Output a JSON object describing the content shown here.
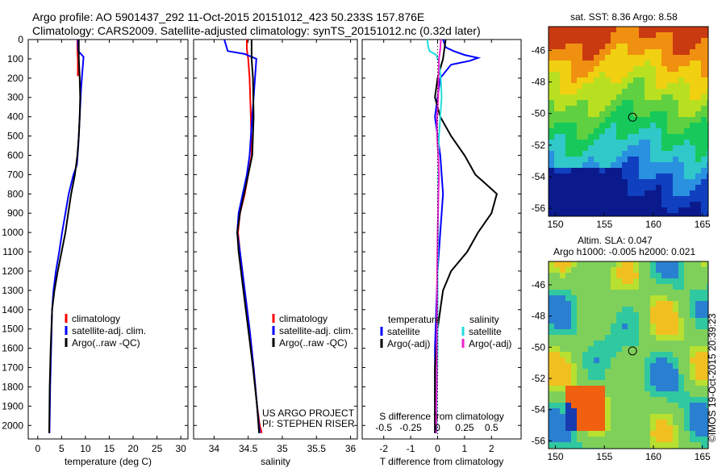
{
  "header": {
    "line1": "Argo profile: AO 5901437_292 11-Oct-2015 20151012_423 50.233S 157.876E",
    "line2": "Climatology: CARS2009. Satellite-adjusted climatology: synTS_20151012.nc (0.32d later)"
  },
  "maps": {
    "sst_title": "sat. SST: 8.36 Argo: 8.58",
    "sla_title1": "Altim. SLA: 0.047",
    "sla_title2": "Argo h1000: -0.005 h2000: 0.021",
    "lon_ticks": [
      "150",
      "155",
      "160",
      "165"
    ],
    "lat_ticks": [
      "-46",
      "-48",
      "-50",
      "-52",
      "-54",
      "-56"
    ],
    "credit": "©IMOS 19-Oct-2015 20:39:23",
    "colors": {
      "sst_deep": "#0a1a8c",
      "sst_mid": "#16c95a",
      "sst_warm": "#c93a10",
      "sla_base": "#7fd05a"
    }
  },
  "annotation": {
    "project": "US ARGO PROJECT",
    "pi": "PI: STEPHEN RISER"
  },
  "colors": {
    "climatology": "#ff0000",
    "satellite": "#0000ff",
    "argo": "#000000",
    "sal_satellite": "#22dddd",
    "sal_argo": "#ee22cc"
  },
  "chart_data": [
    {
      "type": "line",
      "xlabel": "temperature (deg C)",
      "xticks": [
        "0",
        "5",
        "10",
        "15",
        "20",
        "25",
        "30"
      ],
      "xlim": [
        -2,
        31.5
      ],
      "ylim": [
        2070,
        0
      ],
      "yticks": [
        "0",
        "100",
        "200",
        "300",
        "400",
        "500",
        "600",
        "700",
        "800",
        "900",
        "1000",
        "1100",
        "1200",
        "1300",
        "1400",
        "1500",
        "1600",
        "1700",
        "1800",
        "1900",
        "2000"
      ],
      "legend": [
        "climatology",
        "satellite-adj. clim.",
        "Argo(..raw -QC)"
      ],
      "series": [
        {
          "name": "climatology",
          "color_key": "climatology",
          "x": [
            8.3,
            8.3,
            8.4,
            8.4
          ],
          "y": [
            0,
            50,
            100,
            190
          ]
        },
        {
          "name": "satellite-adj. clim.",
          "color_key": "satellite",
          "x": [
            8.4,
            8.5,
            9.6,
            9.4,
            9.1,
            8.9,
            8.7,
            8.5,
            8.2,
            7.5,
            6.5,
            5.8,
            5.1,
            4.5,
            3.8,
            3.3,
            3.0,
            2.8,
            2.6,
            2.55,
            2.45
          ],
          "y": [
            0,
            60,
            90,
            150,
            250,
            350,
            450,
            550,
            650,
            700,
            800,
            900,
            1000,
            1100,
            1200,
            1300,
            1400,
            1600,
            1800,
            1900,
            2040
          ]
        },
        {
          "name": "Argo(..raw -QC)",
          "color_key": "argo",
          "x": [
            8.6,
            8.6,
            8.8,
            8.9,
            8.8,
            8.6,
            8.3,
            7.8,
            7.0,
            6.4,
            5.8,
            5.0,
            4.2,
            3.5,
            3.0,
            2.7,
            2.5,
            2.4
          ],
          "y": [
            0,
            100,
            200,
            300,
            400,
            500,
            600,
            700,
            800,
            900,
            1000,
            1100,
            1200,
            1300,
            1400,
            1600,
            1800,
            2040
          ]
        }
      ]
    },
    {
      "type": "line",
      "xlabel": "salinity",
      "xticks": [
        "34",
        "34.5",
        "35",
        "35.5",
        "36"
      ],
      "xlim": [
        33.7,
        36.1
      ],
      "ylim": [
        2070,
        0
      ],
      "legend": [
        "climatology",
        "satellite-adj. clim.",
        "Argo(..raw -QC)"
      ],
      "series": [
        {
          "name": "climatology",
          "color_key": "climatology",
          "x": [
            34.48,
            34.48,
            34.5,
            34.52,
            34.54,
            34.55,
            34.5,
            34.45,
            34.38,
            34.35,
            34.38,
            34.45,
            34.52,
            34.58,
            34.63,
            34.67,
            34.7
          ],
          "y": [
            0,
            50,
            100,
            200,
            400,
            600,
            700,
            800,
            900,
            1000,
            1100,
            1300,
            1500,
            1700,
            1900,
            2000,
            2040
          ]
        },
        {
          "name": "satellite-adj. clim.",
          "color_key": "satellite",
          "x": [
            34.15,
            34.2,
            34.45,
            34.62,
            34.6,
            34.56,
            34.52,
            34.48,
            34.42,
            34.36,
            34.34,
            34.38,
            34.45,
            34.52,
            34.58,
            34.63,
            34.67
          ],
          "y": [
            0,
            60,
            75,
            100,
            200,
            400,
            600,
            700,
            800,
            900,
            1000,
            1100,
            1300,
            1500,
            1700,
            1900,
            2040
          ]
        },
        {
          "name": "Argo(..raw -QC)",
          "color_key": "argo",
          "x": [
            34.55,
            34.55,
            34.57,
            34.58,
            34.56,
            34.5,
            34.44,
            34.38,
            34.34,
            34.36,
            34.43,
            34.5,
            34.57,
            34.63,
            34.66
          ],
          "y": [
            0,
            100,
            200,
            400,
            600,
            700,
            800,
            900,
            1000,
            1100,
            1300,
            1500,
            1700,
            1900,
            2040
          ]
        }
      ]
    },
    {
      "type": "line",
      "xlabel": "T difference from climatology",
      "xlabel_top": "S difference from climatology",
      "xticks": [
        "-2",
        "-1",
        "0",
        "1",
        "2"
      ],
      "xlim": [
        -2.8,
        3.1
      ],
      "sticks": [
        "-0.5",
        "-0.25",
        "0",
        "0.25",
        "0.5"
      ],
      "ylim": [
        2070,
        0
      ],
      "legend_temperature_title": "temperature",
      "legend_salinity_title": "salinity",
      "legend": [
        "satellite",
        "Argo(-adj)",
        "satellite",
        "Argo(-adj)"
      ],
      "series": [
        {
          "name": "T satellite",
          "color_key": "satellite",
          "x": [
            0.2,
            0.3,
            0.6,
            1.0,
            1.5,
            1.2,
            0.5,
            0.1,
            -0.1,
            0.1,
            0.2,
            0.1,
            0.0,
            -0.05,
            -0.1,
            -0.1,
            -0.1,
            -0.1
          ],
          "y": [
            0,
            40,
            60,
            80,
            95,
            110,
            130,
            200,
            400,
            600,
            800,
            1000,
            1200,
            1400,
            1600,
            1800,
            1900,
            2040
          ]
        },
        {
          "name": "T Argo(-adj)",
          "color_key": "argo",
          "x": [
            0.3,
            0.2,
            0.0,
            -0.1,
            0.1,
            0.5,
            1.0,
            1.2,
            1.4,
            1.8,
            2.2,
            2.0,
            1.5,
            1.1,
            0.5,
            0.2,
            0.1,
            0.0,
            -0.1,
            -0.1
          ],
          "y": [
            0,
            100,
            200,
            300,
            400,
            500,
            600,
            650,
            700,
            750,
            800,
            900,
            1000,
            1100,
            1200,
            1300,
            1400,
            1500,
            1700,
            2040
          ]
        },
        {
          "name": "S satellite",
          "color_key": "sal_satellite",
          "x": [
            -0.38,
            -0.36,
            -0.3,
            -0.05,
            0.05,
            0.12,
            0.15,
            0.1,
            0.05,
            0.03,
            0.02,
            0.02,
            0.0,
            0.0,
            0.0,
            -0.02,
            -0.03,
            -0.03
          ],
          "y": [
            0,
            30,
            60,
            80,
            120,
            200,
            300,
            400,
            500,
            600,
            800,
            1000,
            1200,
            1400,
            1600,
            1800,
            1900,
            2040
          ]
        },
        {
          "name": "S Argo(-adj)",
          "color_key": "sal_argo",
          "x": [
            0.12,
            0.1,
            0.05,
            0.03,
            0.02,
            -0.02,
            -0.02,
            0.02,
            0.05,
            0.03,
            0.0,
            -0.02,
            -0.02,
            -0.03,
            -0.03,
            -0.05,
            -0.05
          ],
          "y": [
            0,
            50,
            100,
            200,
            300,
            400,
            500,
            600,
            700,
            800,
            1000,
            1200,
            1400,
            1600,
            1800,
            1900,
            2040
          ]
        }
      ]
    }
  ]
}
